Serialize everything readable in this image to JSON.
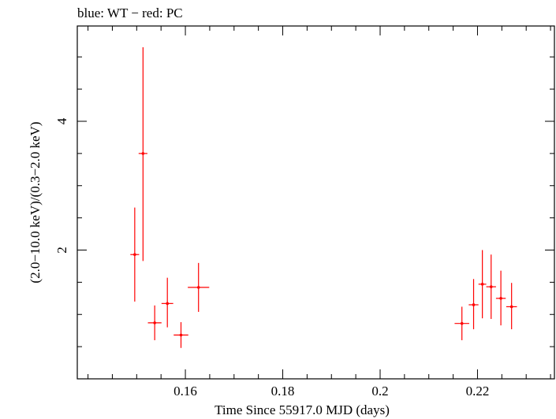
{
  "chart_data": {
    "type": "scatter",
    "title": "blue: WT − red: PC",
    "xlabel": "Time Since 55917.0 MJD (days)",
    "ylabel": "(2.0−10.0 keV)/(0.3−2.0 keV)",
    "xlim": [
      0.1378,
      0.2358
    ],
    "ylim": [
      0.0,
      5.48
    ],
    "x_ticks": [
      {
        "value": 0.16,
        "label": "0.16"
      },
      {
        "value": 0.18,
        "label": "0.18"
      },
      {
        "value": 0.2,
        "label": "0.2"
      },
      {
        "value": 0.22,
        "label": "0.22"
      }
    ],
    "y_ticks": [
      {
        "value": 2,
        "label": "2"
      },
      {
        "value": 4,
        "label": "4"
      }
    ],
    "x_minor_step": 0.005,
    "y_minor_step": 0.5,
    "grid": false,
    "series": [
      {
        "color": "#ff0000",
        "points": [
          {
            "x": 0.1496,
            "xerr": 0.0009,
            "y": 1.93,
            "yerr_low": 0.73,
            "yerr_high": 0.73
          },
          {
            "x": 0.1513,
            "xerr": 0.0009,
            "y": 3.5,
            "yerr_low": 1.67,
            "yerr_high": 1.65
          },
          {
            "x": 0.1537,
            "xerr": 0.0014,
            "y": 0.87,
            "yerr_low": 0.27,
            "yerr_high": 0.27
          },
          {
            "x": 0.1563,
            "xerr": 0.0012,
            "y": 1.17,
            "yerr_low": 0.37,
            "yerr_high": 0.4
          },
          {
            "x": 0.1591,
            "xerr": 0.0015,
            "y": 0.68,
            "yerr_low": 0.2,
            "yerr_high": 0.2
          },
          {
            "x": 0.1627,
            "xerr": 0.0022,
            "y": 1.42,
            "yerr_low": 0.38,
            "yerr_high": 0.38
          },
          {
            "x": 0.2168,
            "xerr": 0.0015,
            "y": 0.86,
            "yerr_low": 0.26,
            "yerr_high": 0.26
          },
          {
            "x": 0.2192,
            "xerr": 0.001,
            "y": 1.15,
            "yerr_low": 0.38,
            "yerr_high": 0.4
          },
          {
            "x": 0.221,
            "xerr": 0.0008,
            "y": 1.47,
            "yerr_low": 0.53,
            "yerr_high": 0.53
          },
          {
            "x": 0.2228,
            "xerr": 0.001,
            "y": 1.43,
            "yerr_low": 0.5,
            "yerr_high": 0.5
          },
          {
            "x": 0.2248,
            "xerr": 0.001,
            "y": 1.25,
            "yerr_low": 0.42,
            "yerr_high": 0.43
          },
          {
            "x": 0.227,
            "xerr": 0.0011,
            "y": 1.12,
            "yerr_low": 0.35,
            "yerr_high": 0.37
          }
        ]
      }
    ]
  }
}
